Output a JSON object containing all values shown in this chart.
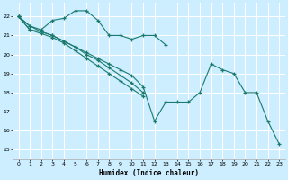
{
  "xlabel": "Humidex (Indice chaleur)",
  "bg_color": "#cceeff",
  "grid_color": "#ffffff",
  "line_color": "#1a7a6e",
  "xlim": [
    -0.5,
    23.5
  ],
  "ylim": [
    14.5,
    22.7
  ],
  "xticks": [
    0,
    1,
    2,
    3,
    4,
    5,
    6,
    7,
    8,
    9,
    10,
    11,
    12,
    13,
    14,
    15,
    16,
    17,
    18,
    19,
    20,
    21,
    22,
    23
  ],
  "yticks": [
    15,
    16,
    17,
    18,
    19,
    20,
    21,
    22
  ],
  "line1_x": [
    0,
    1,
    2,
    3,
    4,
    5,
    6,
    7,
    8,
    9,
    10,
    11,
    12,
    13
  ],
  "line1_y": [
    22.0,
    21.5,
    21.3,
    21.8,
    21.9,
    22.3,
    22.3,
    21.8,
    21.0,
    21.0,
    20.8,
    21.0,
    21.0,
    20.5
  ],
  "line2_x": [
    0,
    1,
    2,
    3,
    4,
    5,
    6,
    7,
    8,
    9,
    10,
    11,
    12,
    13,
    14,
    15,
    16,
    17,
    18,
    19,
    20,
    21,
    22,
    23
  ],
  "line2_y": [
    22.0,
    21.5,
    21.2,
    21.0,
    20.7,
    20.4,
    20.1,
    19.8,
    19.5,
    19.2,
    18.9,
    18.3,
    16.5,
    17.5,
    17.5,
    17.5,
    18.0,
    19.5,
    19.2,
    19.0,
    18.0,
    18.0,
    16.5,
    15.3
  ],
  "line3_x": [
    0,
    1,
    2,
    3,
    4,
    5,
    6,
    7,
    8,
    9,
    10,
    11
  ],
  "line3_y": [
    22.0,
    21.3,
    21.2,
    21.0,
    20.7,
    20.4,
    20.0,
    19.7,
    19.3,
    18.9,
    18.5,
    18.0
  ],
  "line4_x": [
    0,
    1,
    2,
    3,
    4,
    5,
    6,
    7,
    8,
    9,
    10,
    11
  ],
  "line4_y": [
    22.0,
    21.3,
    21.1,
    20.9,
    20.6,
    20.2,
    19.8,
    19.4,
    19.0,
    18.6,
    18.2,
    17.8
  ]
}
